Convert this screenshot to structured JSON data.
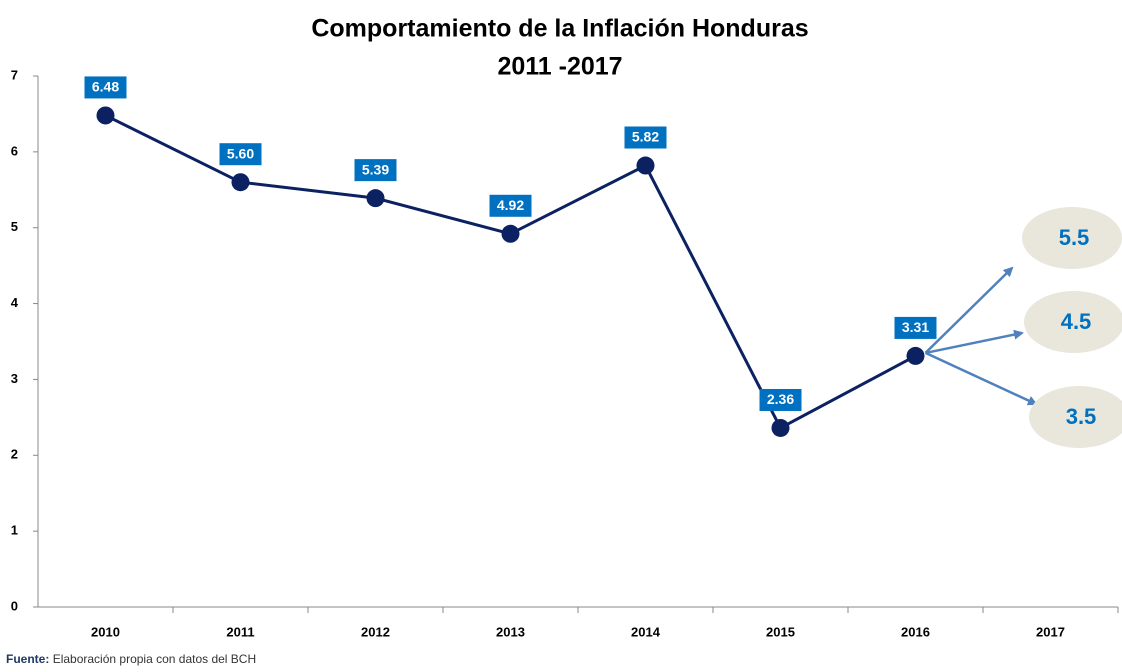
{
  "chart_data": {
    "type": "line",
    "title": "Comportamiento de la Inflación Honduras",
    "subtitle": "2011 -2017",
    "categories": [
      "2010",
      "2011",
      "2012",
      "2013",
      "2014",
      "2015",
      "2016",
      "2017"
    ],
    "series": [
      {
        "name": null,
        "color": "#0b2161",
        "values": [
          6.48,
          5.6,
          5.39,
          4.92,
          5.82,
          2.36,
          3.31,
          null
        ],
        "value_labels": [
          "6.48",
          "5.60",
          "5.39",
          "4.92",
          "5.82",
          "2.36",
          "3.31",
          null
        ]
      }
    ],
    "ylim": [
      0,
      7
    ],
    "yticks": [
      0,
      1,
      2,
      3,
      4,
      5,
      6,
      7
    ],
    "projections": [
      {
        "value": 5.5,
        "label": "5.5"
      },
      {
        "value": 4.5,
        "label": "4.5"
      },
      {
        "value": 3.5,
        "label": "3.5"
      }
    ],
    "source_label": "Fuente:",
    "source_text": "Elaboración propia con datos del BCH"
  }
}
